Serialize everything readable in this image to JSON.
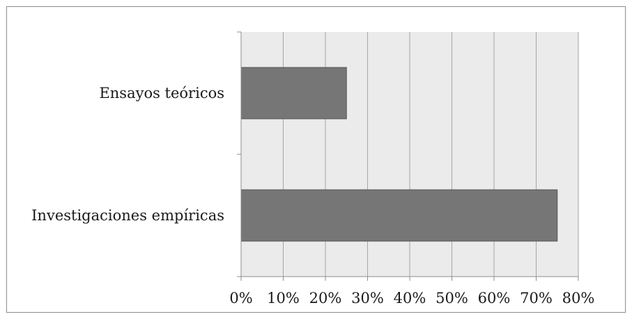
{
  "chart_data": {
    "type": "bar",
    "orientation": "horizontal",
    "title": "",
    "xlabel": "",
    "ylabel": "",
    "categories": [
      "Ensayos teóricos",
      "Investigaciones empíricas"
    ],
    "values": [
      0.25,
      0.75
    ],
    "xlim": [
      0,
      0.8
    ],
    "x_ticks": [
      "0%",
      "10%",
      "20%",
      "30%",
      "40%",
      "50%",
      "60%",
      "70%",
      "80%"
    ],
    "x_tick_values": [
      0,
      0.1,
      0.2,
      0.3,
      0.4,
      0.5,
      0.6,
      0.7,
      0.8
    ],
    "grid": true,
    "legend": "none",
    "colors": {
      "bar": "#767676",
      "bar_border": "#555555",
      "plot_background": "#ebebeb",
      "grid": "#a6a6a6",
      "axis": "#8c8c8c"
    }
  }
}
